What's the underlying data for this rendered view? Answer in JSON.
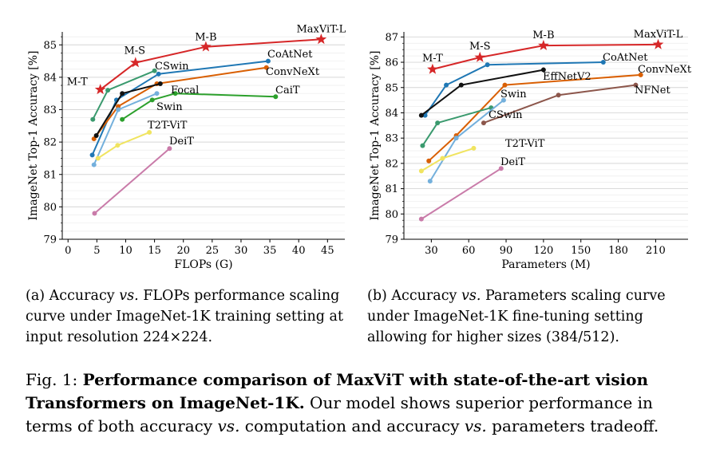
{
  "chart_data": [
    {
      "type": "line",
      "xlabel": "FLOPs (G)",
      "ylabel": "ImageNet Top-1 Accuracy [%]",
      "xlim": [
        -1,
        48
      ],
      "ylim": [
        79,
        85.4
      ],
      "xticks": [
        0,
        5,
        10,
        15,
        20,
        25,
        30,
        35,
        40,
        45
      ],
      "yticks": [
        79,
        80,
        81,
        82,
        83,
        84,
        85
      ],
      "grid": "horizontal",
      "series": [
        {
          "name": "MaxViT",
          "color": "#d62728",
          "marker": "star",
          "points": [
            [
              5.6,
              83.62
            ],
            [
              11.7,
              84.45
            ],
            [
              23.9,
              84.94
            ],
            [
              43.9,
              85.17
            ]
          ],
          "point_labels": [
            "M-T",
            "M-S",
            "M-B",
            "MaxViT-L"
          ]
        },
        {
          "name": "CoAtNet",
          "color": "#1f77b4",
          "points": [
            [
              4.2,
              81.6
            ],
            [
              8.4,
              83.3
            ],
            [
              15.7,
              84.1
            ],
            [
              34.7,
              84.5
            ]
          ]
        },
        {
          "name": "ConvNeXt",
          "color": "#d95f02",
          "points": [
            [
              4.5,
              82.1
            ],
            [
              8.7,
              83.1
            ],
            [
              15.4,
              83.8
            ],
            [
              34.4,
              84.3
            ]
          ]
        },
        {
          "name": "CSwin",
          "color": "#3a9a6e",
          "points": [
            [
              4.3,
              82.7
            ],
            [
              6.9,
              83.6
            ],
            [
              15.0,
              84.2
            ]
          ]
        },
        {
          "name": "Focal",
          "color": "#111111",
          "points": [
            [
              4.9,
              82.2
            ],
            [
              9.4,
              83.5
            ],
            [
              16.0,
              83.8
            ]
          ]
        },
        {
          "name": "CaiT",
          "color": "#2ca02c",
          "points": [
            [
              9.4,
              82.7
            ],
            [
              14.6,
              83.3
            ],
            [
              18.6,
              83.5
            ],
            [
              36.0,
              83.4
            ]
          ]
        },
        {
          "name": "Swin",
          "color": "#74b0dc",
          "points": [
            [
              4.5,
              81.3
            ],
            [
              8.7,
              83.0
            ],
            [
              15.4,
              83.5
            ]
          ]
        },
        {
          "name": "T2T-ViT",
          "color": "#f0e460",
          "points": [
            [
              5.2,
              81.5
            ],
            [
              8.6,
              81.9
            ],
            [
              14.1,
              82.3
            ]
          ]
        },
        {
          "name": "DeiT",
          "color": "#c97ba9",
          "points": [
            [
              4.6,
              79.8
            ],
            [
              17.6,
              81.8
            ]
          ]
        }
      ],
      "labels": [
        {
          "text": "CoAtNet"
        },
        {
          "text": "ConvNeXt"
        },
        {
          "text": "CSwin"
        },
        {
          "text": "Focal"
        },
        {
          "text": "CaiT"
        },
        {
          "text": "Swin"
        },
        {
          "text": "T2T-ViT"
        },
        {
          "text": "DeiT"
        }
      ]
    },
    {
      "type": "line",
      "xlabel": "Parameters (M)",
      "ylabel": "ImageNet Top-1 Accuracy [%]",
      "xlim": [
        8,
        236
      ],
      "ylim": [
        79,
        87.2
      ],
      "xticks": [
        30,
        60,
        90,
        120,
        150,
        180,
        210
      ],
      "yticks": [
        79,
        80,
        81,
        82,
        83,
        84,
        85,
        86,
        87
      ],
      "grid": "horizontal",
      "series": [
        {
          "name": "MaxViT",
          "color": "#d62728",
          "marker": "star",
          "points": [
            [
              31,
              85.72
            ],
            [
              69,
              86.19
            ],
            [
              120,
              86.66
            ],
            [
              212,
              86.7
            ]
          ],
          "point_labels": [
            "M-T",
            "M-S",
            "M-B",
            "MaxViT-L"
          ]
        },
        {
          "name": "CoAtNet",
          "color": "#1f77b4",
          "points": [
            [
              25,
              83.9
            ],
            [
              42,
              85.1
            ],
            [
              75,
              85.9
            ],
            [
              168,
              86.0
            ]
          ]
        },
        {
          "name": "ConvNeXt",
          "color": "#d95f02",
          "points": [
            [
              28,
              82.1
            ],
            [
              50,
              83.1
            ],
            [
              89,
              85.1
            ],
            [
              198,
              85.5
            ]
          ]
        },
        {
          "name": "EffNetV2",
          "color": "#111111",
          "points": [
            [
              22,
              83.9
            ],
            [
              54,
              85.1
            ],
            [
              120,
              85.7
            ]
          ]
        },
        {
          "name": "NFNet",
          "color": "#8c564b",
          "points": [
            [
              72,
              83.6
            ],
            [
              132,
              84.7
            ],
            [
              194,
              85.1
            ]
          ]
        },
        {
          "name": "CSwin",
          "color": "#3a9a6e",
          "points": [
            [
              23,
              82.7
            ],
            [
              35,
              83.6
            ],
            [
              78,
              84.2
            ]
          ]
        },
        {
          "name": "Swin",
          "color": "#74b0dc",
          "points": [
            [
              29,
              81.3
            ],
            [
              50,
              83.0
            ],
            [
              88,
              84.5
            ]
          ]
        },
        {
          "name": "T2T-ViT",
          "color": "#f0e460",
          "points": [
            [
              22,
              81.7
            ],
            [
              39,
              82.2
            ],
            [
              64,
              82.6
            ]
          ]
        },
        {
          "name": "DeiT",
          "color": "#c97ba9",
          "points": [
            [
              22,
              79.8
            ],
            [
              86,
              81.8
            ]
          ]
        }
      ],
      "labels": [
        {
          "text": "CoAtNet"
        },
        {
          "text": "ConvNeXt"
        },
        {
          "text": "EffNetV2"
        },
        {
          "text": "NFNet"
        },
        {
          "text": "Swin"
        },
        {
          "text": "CSwin"
        },
        {
          "text": "T2T-ViT"
        },
        {
          "text": "DeiT"
        }
      ]
    }
  ],
  "captions": {
    "a_prefix": "(a) Accuracy ",
    "a_vs": "vs.",
    "a_rest": " FLOPs performance scaling curve under ImageNet-1K training setting at input resolution 224×224.",
    "b_prefix": "(b) Accuracy ",
    "b_vs": "vs.",
    "b_rest": " Parameters scaling curve under ImageNet-1K fine-tuning setting allowing for higher sizes (384/512).",
    "figure_prefix": "Fig. 1: ",
    "figure_bold": "Performance comparison of MaxViT with state-of-the-art vision Transformers on ImageNet-1K.",
    "figure_mid": " Our model shows superior performance in terms of both accuracy ",
    "figure_vs1": "vs.",
    "figure_mid2": " computation and accuracy ",
    "figure_vs2": "vs.",
    "figure_end": " parameters tradeoff."
  }
}
